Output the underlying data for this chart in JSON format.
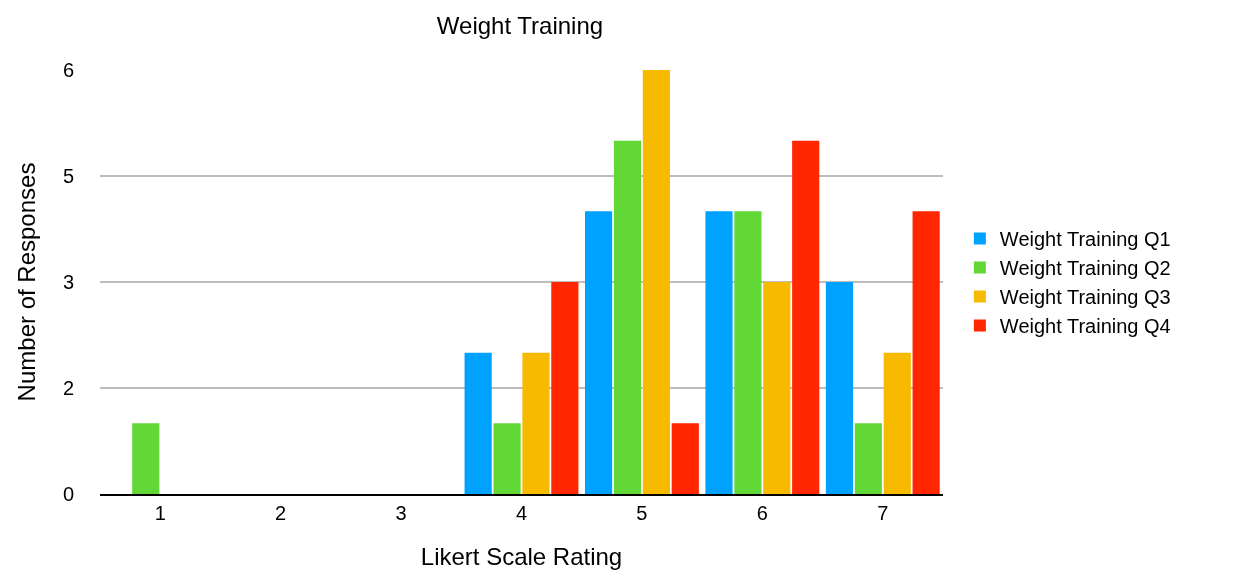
{
  "chart_data": {
    "type": "bar",
    "title": "Weight Training",
    "xlabel": "Likert Scale Rating",
    "ylabel": "Number of Responses",
    "categories": [
      "1",
      "2",
      "3",
      "4",
      "5",
      "6",
      "7"
    ],
    "series": [
      {
        "name": "Weight Training Q1",
        "color": "#00a2ff",
        "values": [
          0,
          0,
          0,
          2,
          4,
          4,
          3
        ]
      },
      {
        "name": "Weight Training Q2",
        "color": "#61d836",
        "values": [
          1,
          0,
          0,
          1,
          5,
          4,
          1
        ]
      },
      {
        "name": "Weight Training Q3",
        "color": "#f8ba00",
        "values": [
          0,
          0,
          0,
          2,
          6,
          3,
          2
        ]
      },
      {
        "name": "Weight Training Q4",
        "color": "#ff2600",
        "values": [
          0,
          0,
          0,
          3,
          1,
          5,
          4
        ]
      }
    ],
    "ylim": [
      0,
      6
    ],
    "yticks": [
      0,
      {
        "value": 1.5,
        "label": "2"
      },
      3,
      {
        "value": 4.5,
        "label": "5"
      },
      6
    ],
    "grid": "y",
    "legend": "right"
  }
}
